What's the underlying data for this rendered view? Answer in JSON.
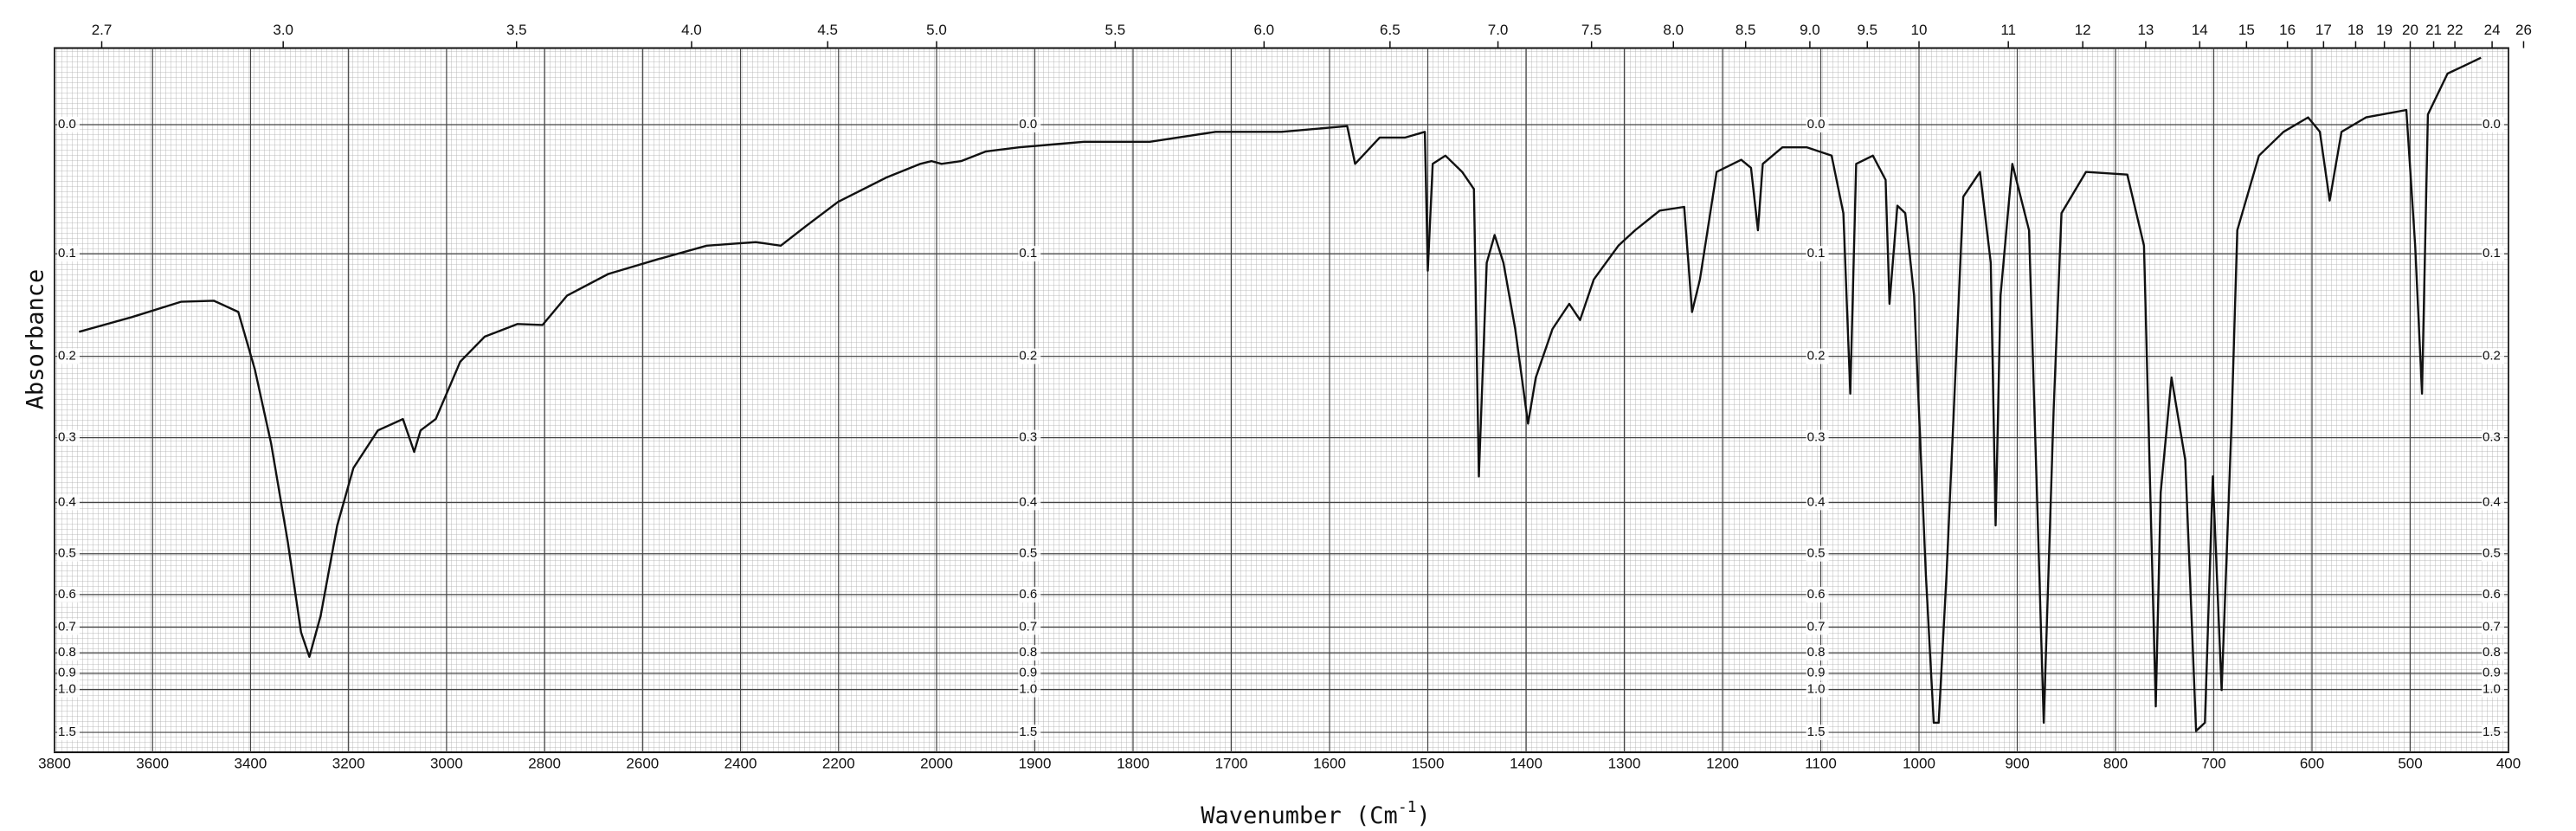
{
  "chart_data": {
    "type": "line",
    "xlabel": [
      "Wavenumber (Cm",
      "-1",
      ")"
    ],
    "ylabel": "Absorbance",
    "xlim": [
      3800,
      400
    ],
    "x_scale_break": 2000,
    "xticks": [
      3800,
      3600,
      3400,
      3200,
      3000,
      2800,
      2600,
      2400,
      2200,
      2000,
      1900,
      1800,
      1700,
      1600,
      1500,
      1400,
      1300,
      1200,
      1100,
      1000,
      900,
      800,
      700,
      600,
      500,
      400
    ],
    "x2ticks": [
      2.7,
      {
        "value": 3,
        "label": "3.0"
      },
      3.5,
      {
        "value": 4,
        "label": "4.0"
      },
      4.5,
      {
        "value": 5,
        "label": "5.0"
      },
      5.5,
      {
        "value": 6,
        "label": "6.0"
      },
      6.5,
      {
        "value": 7,
        "label": "7.0"
      },
      7.5,
      {
        "value": 8,
        "label": "8.0"
      },
      8.5,
      {
        "value": 9,
        "label": "9.0"
      },
      9.5,
      10,
      11,
      12,
      13,
      14,
      15,
      16,
      17,
      18,
      19,
      20,
      21,
      22,
      24,
      26
    ],
    "ylim": [
      1.5,
      -0.05
    ],
    "yscale": "transmittance",
    "yticks": [
      {
        "value": 0,
        "label": "0.0"
      },
      0.1,
      0.2,
      0.3,
      0.4,
      0.5,
      0.6,
      0.7,
      0.8,
      0.9,
      {
        "value": 1,
        "label": "1.0"
      },
      1.5
    ],
    "grid": true,
    "color": "#111111",
    "x": [
      3750,
      3642,
      3542,
      3475,
      3425,
      3391,
      3358,
      3324,
      3297,
      3280,
      3257,
      3223,
      3190,
      3140,
      3089,
      3066,
      3053,
      3022,
      2972,
      2922,
      2855,
      2804,
      2754,
      2670,
      2570,
      2469,
      2369,
      2318,
      2268,
      2201,
      2101,
      2033,
      2010,
      1995,
      1975,
      1950,
      1916,
      1883,
      1850,
      1783,
      1716,
      1649,
      1582,
      1574,
      1549,
      1523,
      1503,
      1500,
      1495,
      1482,
      1465,
      1453,
      1448,
      1440,
      1432,
      1423,
      1411,
      1398,
      1390,
      1373,
      1356,
      1345,
      1331,
      1306,
      1289,
      1264,
      1239,
      1231,
      1223,
      1206,
      1181,
      1171,
      1164,
      1159,
      1139,
      1114,
      1089,
      1077,
      1070,
      1064,
      1047,
      1034,
      1030,
      1022,
      1014,
      1005,
      993,
      985,
      980,
      972,
      955,
      938,
      927,
      922,
      917,
      905,
      888,
      880,
      873,
      863,
      855,
      830,
      788,
      771,
      759,
      754,
      743,
      729,
      718,
      709,
      701,
      692,
      682,
      676,
      654,
      629,
      604,
      592,
      582,
      570,
      545,
      504,
      495,
      488,
      482,
      462,
      445,
      428
    ],
    "values": [
      0.174,
      0.159,
      0.144,
      0.143,
      0.154,
      0.215,
      0.308,
      0.475,
      0.719,
      0.818,
      0.663,
      0.442,
      0.344,
      0.29,
      0.275,
      0.32,
      0.29,
      0.275,
      0.206,
      0.179,
      0.166,
      0.167,
      0.138,
      0.118,
      0.105,
      0.093,
      0.09,
      0.093,
      0.077,
      0.057,
      0.038,
      0.028,
      0.026,
      0.028,
      0.026,
      0.019,
      0.016,
      0.014,
      0.012,
      0.012,
      0.005,
      0.005,
      0.001,
      0.028,
      0.009,
      0.009,
      0.005,
      0.115,
      0.028,
      0.022,
      0.034,
      0.047,
      0.357,
      0.108,
      0.084,
      0.108,
      0.171,
      0.281,
      0.224,
      0.171,
      0.146,
      0.162,
      0.123,
      0.093,
      0.08,
      0.064,
      0.061,
      0.154,
      0.123,
      0.034,
      0.025,
      0.031,
      0.08,
      0.028,
      0.016,
      0.016,
      0.022,
      0.066,
      0.243,
      0.028,
      0.022,
      0.04,
      0.146,
      0.06,
      0.066,
      0.138,
      0.548,
      1.328,
      1.328,
      0.548,
      0.053,
      0.034,
      0.108,
      0.442,
      0.138,
      0.028,
      0.08,
      0.383,
      1.328,
      0.264,
      0.066,
      0.034,
      0.036,
      0.093,
      1.137,
      0.383,
      0.224,
      0.332,
      1.469,
      1.328,
      0.357,
      1.004,
      0.286,
      0.08,
      0.022,
      0.005,
      -0.005,
      0.005,
      0.056,
      0.005,
      -0.005,
      -0.01,
      0.093,
      0.243,
      -0.007,
      -0.034,
      -0.039,
      -0.044
    ]
  }
}
